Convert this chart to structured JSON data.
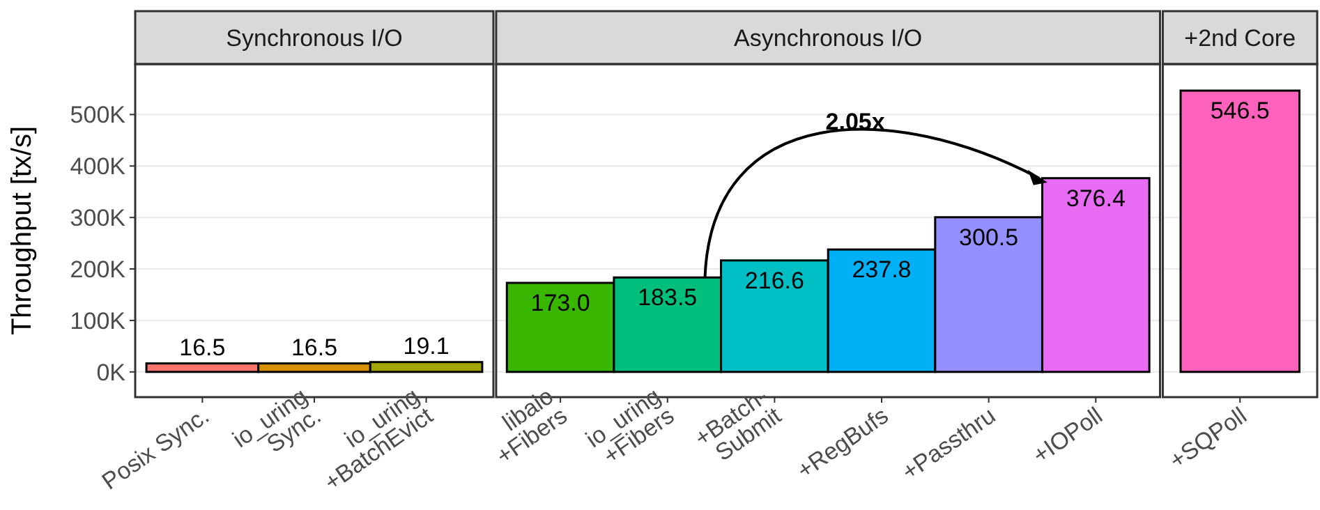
{
  "chart_data": [
    {
      "type": "bar",
      "title": "Synchronous I/O",
      "ylabel": "Throughput [tx/s]",
      "categories": [
        "Posix Sync.",
        "io_uring\nSync.",
        "io_uring\n+BatchEvict"
      ],
      "values": [
        16.5,
        16.5,
        19.1
      ],
      "value_labels": [
        "16.5",
        "16.5",
        "19.1"
      ],
      "colors": [
        "#f8766d",
        "#d89000",
        "#a3a500"
      ],
      "ylim": [
        -49,
        598
      ],
      "yticks": [
        {
          "value": 0,
          "label": "0K"
        },
        {
          "value": 100,
          "label": "100K"
        },
        {
          "value": 200,
          "label": "200K"
        },
        {
          "value": 300,
          "label": "300K"
        },
        {
          "value": 400,
          "label": "400K"
        },
        {
          "value": 500,
          "label": "500K"
        }
      ],
      "grid": "y"
    },
    {
      "type": "bar",
      "title": "Asynchronous I/O",
      "categories": [
        "libaio\n+Fibers",
        "io_uring\n+Fibers",
        "+Batch-\nSubmit",
        "+RegBufs",
        "+Passthru",
        "+IOPoll"
      ],
      "values": [
        173.0,
        183.5,
        216.6,
        237.8,
        300.5,
        376.4
      ],
      "value_labels": [
        "173.0",
        "183.5",
        "216.6",
        "237.8",
        "300.5",
        "376.4"
      ],
      "colors": [
        "#39b600",
        "#00bf7d",
        "#00bfc4",
        "#00b0f6",
        "#9590ff",
        "#e76bf3"
      ],
      "ylim": [
        -49,
        598
      ],
      "yticks": [
        0,
        100,
        200,
        300,
        400,
        500
      ],
      "grid": "y",
      "tick_labels": "x",
      "annotations": [
        "2.05x"
      ]
    },
    {
      "type": "bar",
      "title": "+2nd Core",
      "categories": [
        "+SQPoll"
      ],
      "values": [
        546.5
      ],
      "value_labels": [
        "546.5"
      ],
      "colors": [
        "#ff62bc"
      ],
      "ylim": [
        -49,
        598
      ],
      "yticks": [
        0,
        100,
        200,
        300,
        400,
        500
      ],
      "grid": "y",
      "tick_labels": "x"
    }
  ]
}
